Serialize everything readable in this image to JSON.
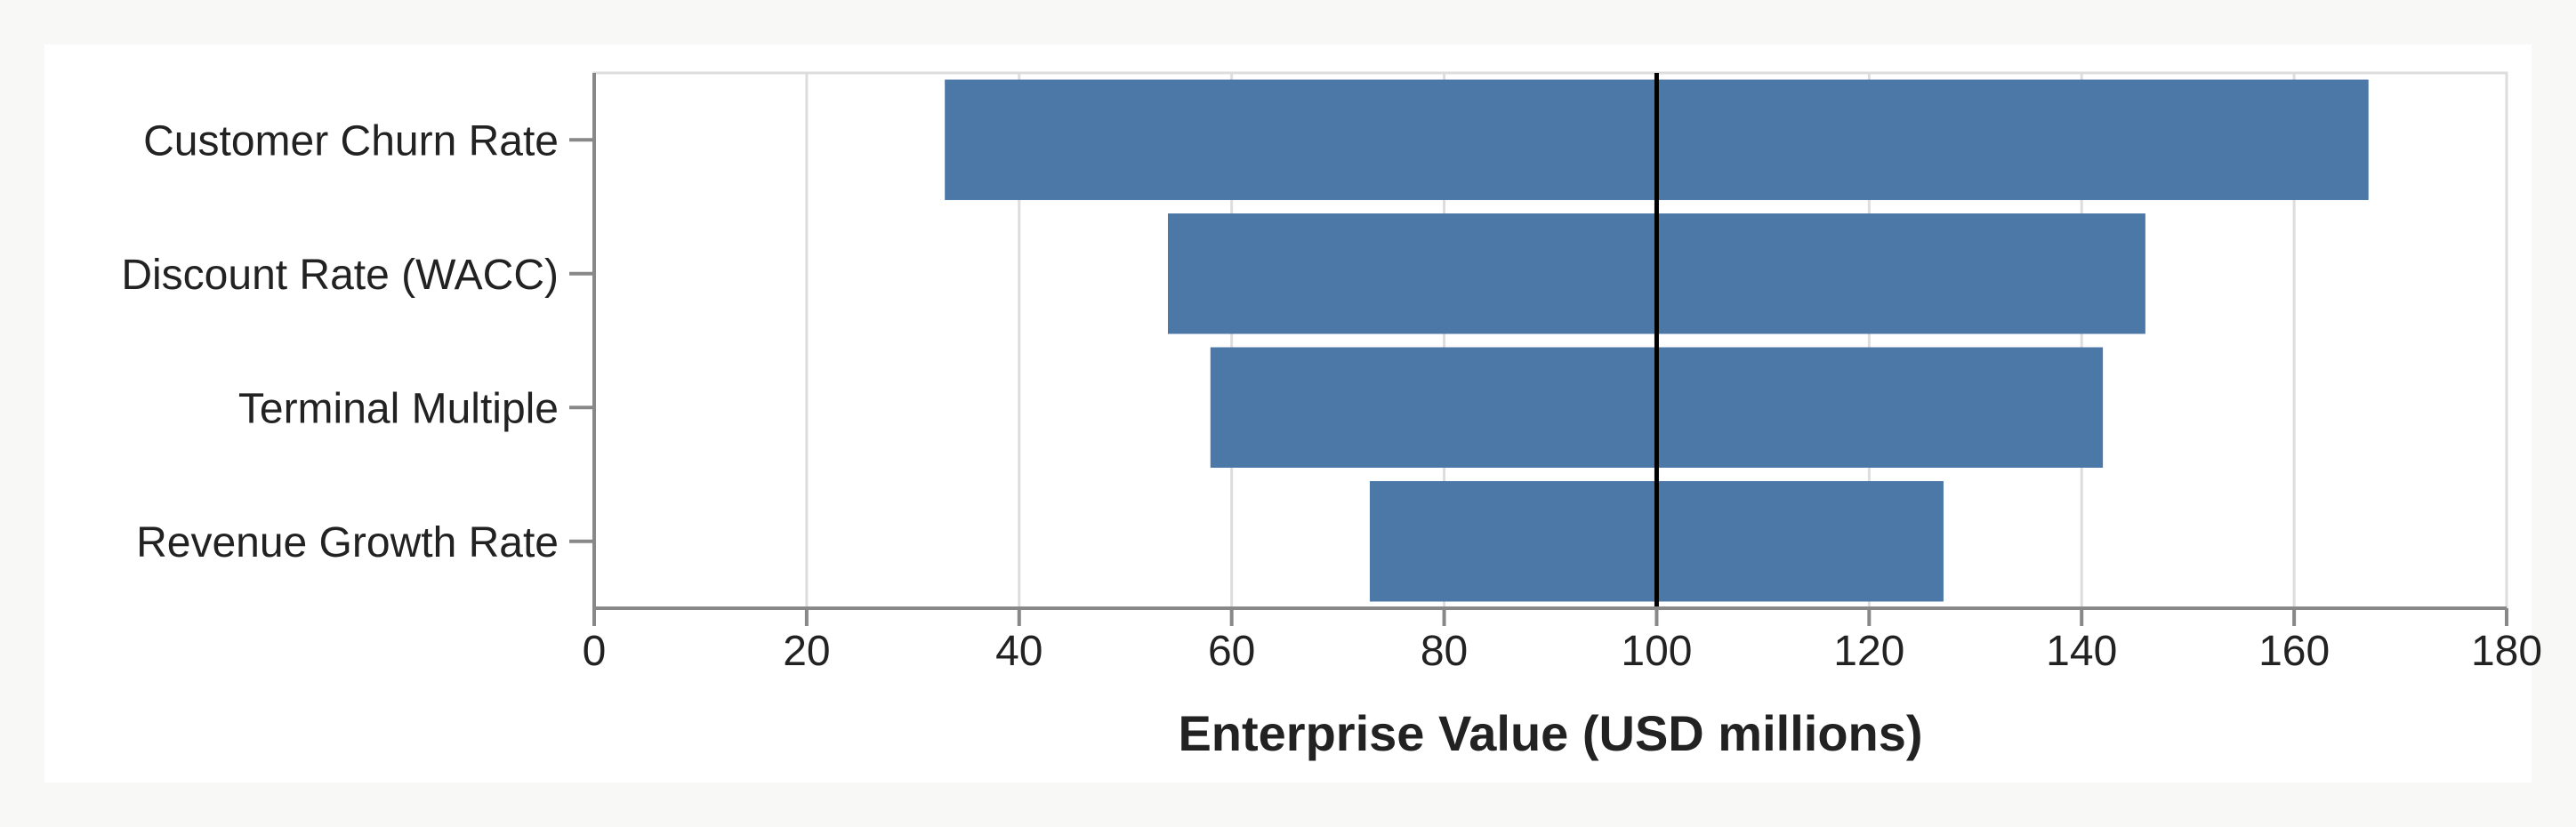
{
  "chart_data": {
    "type": "bar",
    "orientation": "horizontal",
    "subtype": "tornado",
    "categories": [
      "Customer Churn Rate",
      "Discount Rate (WACC)",
      "Terminal Multiple",
      "Revenue Growth Rate"
    ],
    "series": [
      {
        "low": [
          33,
          54,
          58,
          73
        ],
        "high": [
          167,
          146,
          142,
          127
        ]
      }
    ],
    "baseline": 100,
    "xlabel": "Enterprise Value (USD millions)",
    "ylabel": "",
    "xlim": [
      0,
      180
    ],
    "xticks": [
      0,
      20,
      40,
      60,
      80,
      100,
      120,
      140,
      160,
      180
    ],
    "grid": true,
    "colors": {
      "bar": "#4c78a8",
      "baseline": "#000000",
      "grid": "#dddddd",
      "axis": "#888888"
    }
  }
}
